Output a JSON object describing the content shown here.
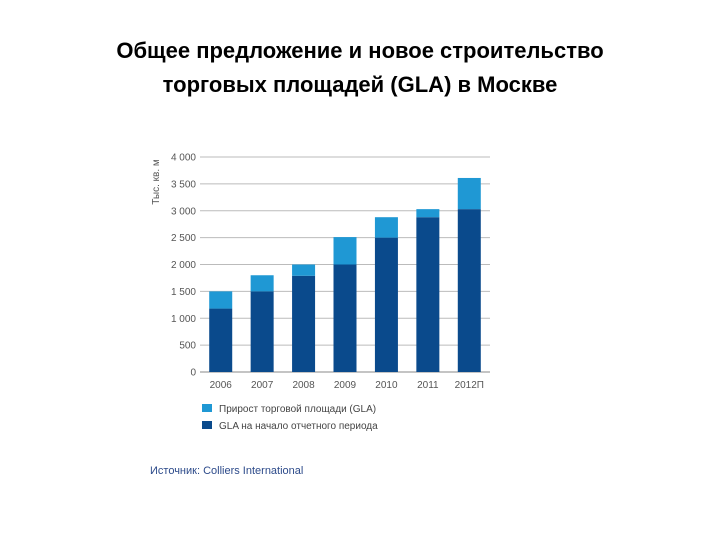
{
  "title": {
    "line1": "Общее предложение и новое строительство",
    "line2": "торговых площадей (GLA) в Москве"
  },
  "chart_data": {
    "type": "bar",
    "stacked": true,
    "ylabel": "Тыс. кв. м",
    "ylim": [
      0,
      4000
    ],
    "yticks": [
      0,
      500,
      1000,
      1500,
      2000,
      2500,
      3000,
      3500,
      4000
    ],
    "ytick_labels": [
      "0",
      "500",
      "1 000",
      "1 500",
      "2 000",
      "2 500",
      "3 000",
      "3 500",
      "4 000"
    ],
    "categories": [
      "2006",
      "2007",
      "2008",
      "2009",
      "2010",
      "2011",
      "2012П"
    ],
    "series": [
      {
        "name": "GLA на начало отчетного периода",
        "color": "#0a4a8c",
        "values": [
          1180,
          1500,
          1790,
          2000,
          2500,
          2880,
          3030
        ]
      },
      {
        "name": "Прирост торговой площади (GLA)",
        "color": "#1f98d4",
        "values": [
          320,
          300,
          210,
          510,
          380,
          150,
          580
        ]
      }
    ],
    "grid": true,
    "legend_placement": "bottom-left"
  },
  "source": "Источник: Colliers International"
}
